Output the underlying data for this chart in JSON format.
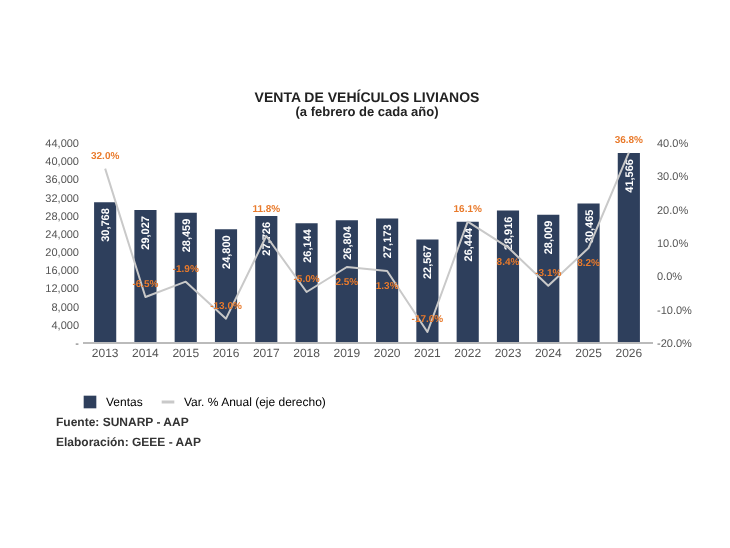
{
  "chart_data": {
    "type": "bar",
    "title": "VENTA DE VEHÍCULOS LIVIANOS",
    "subtitle": "(a febrero de cada año)",
    "categories": [
      "2013",
      "2014",
      "2015",
      "2016",
      "2017",
      "2018",
      "2019",
      "2020",
      "2021",
      "2022",
      "2023",
      "2024",
      "2025",
      "2026"
    ],
    "series": [
      {
        "name": "Ventas",
        "color": "#2e3f5c",
        "values": [
          30768,
          29027,
          28459,
          24800,
          27726,
          26144,
          26804,
          27173,
          22567,
          26444,
          28916,
          28009,
          30465,
          41566
        ],
        "value_labels": [
          "30,768",
          "29,027",
          "28,459",
          "24,800",
          "27,726",
          "26,144",
          "26,804",
          "27,173",
          "22,567",
          "26,444",
          "28,916",
          "28,009",
          "30,465",
          "41,566"
        ]
      },
      {
        "name": "Var. % Anual (eje derecho)",
        "type": "line",
        "axis": "y2",
        "color": "#c9c9c9",
        "values": [
          32.0,
          -6.5,
          -1.9,
          -13.0,
          11.8,
          -5.0,
          2.5,
          1.3,
          -17.0,
          16.1,
          8.4,
          -3.1,
          8.2,
          36.8
        ],
        "value_labels": [
          "32.0%",
          "-6.5%",
          "-1.9%",
          "-13.0%",
          "11.8%",
          "-5.0%",
          "2.5%",
          "1.3%",
          "-17.0%",
          "16.1%",
          "8.4%",
          "-3.1%",
          "8.2%",
          "36.8%"
        ]
      }
    ],
    "ylim": [
      0,
      44000
    ],
    "yticks": [
      {
        "value": 0,
        "label": "-"
      },
      {
        "value": 4000,
        "label": "4,000"
      },
      {
        "value": 8000,
        "label": "8,000"
      },
      {
        "value": 12000,
        "label": "12,000"
      },
      {
        "value": 16000,
        "label": "16,000"
      },
      {
        "value": 20000,
        "label": "20,000"
      },
      {
        "value": 24000,
        "label": "24,000"
      },
      {
        "value": 28000,
        "label": "28,000"
      },
      {
        "value": 32000,
        "label": "32,000"
      },
      {
        "value": 36000,
        "label": "36,000"
      },
      {
        "value": 40000,
        "label": "40,000"
      },
      {
        "value": 44000,
        "label": "44,000"
      }
    ],
    "y2lim": [
      -20,
      40
    ],
    "y2ticks": [
      {
        "value": -20,
        "label": "-20.0%"
      },
      {
        "value": -10,
        "label": "-10.0%"
      },
      {
        "value": 0,
        "label": "0.0%"
      },
      {
        "value": 10,
        "label": "10.0%"
      },
      {
        "value": 20,
        "label": "20.0%"
      },
      {
        "value": 30,
        "label": "30.0%"
      },
      {
        "value": 40,
        "label": "40.0%"
      }
    ],
    "legend": "bottom",
    "annotations": [
      "Fuente: SUNARP - AAP",
      "Elaboración: GEEE - AAP"
    ]
  }
}
